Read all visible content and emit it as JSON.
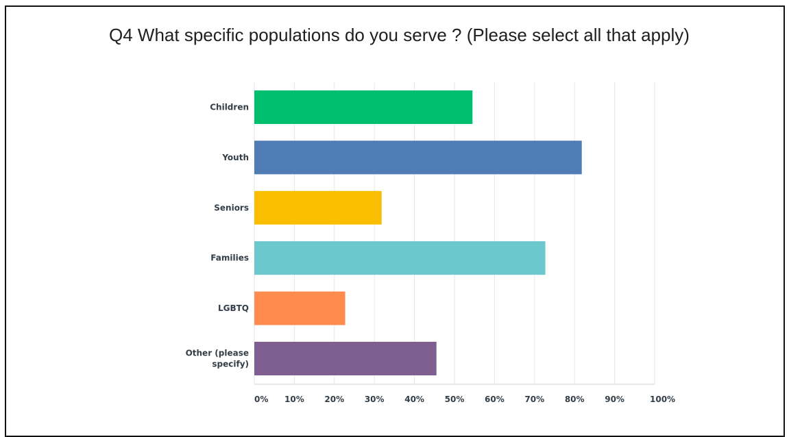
{
  "chart_data": {
    "type": "bar",
    "orientation": "horizontal",
    "title": "Q4 What specific populations do you serve ? (Please select all that apply)",
    "categories": [
      "Children",
      "Youth",
      "Seniors",
      "Families",
      "LGBTQ",
      "Other (please specify)"
    ],
    "category_lines": [
      [
        "Children"
      ],
      [
        "Youth"
      ],
      [
        "Seniors"
      ],
      [
        "Families"
      ],
      [
        "LGBTQ"
      ],
      [
        "Other (please",
        "specify)"
      ]
    ],
    "values": [
      54.5,
      81.8,
      31.8,
      72.7,
      22.7,
      45.5
    ],
    "value_unit": "%",
    "xlim": [
      0,
      100
    ],
    "x_ticks": [
      0,
      10,
      20,
      30,
      40,
      50,
      60,
      70,
      80,
      90,
      100
    ],
    "x_tick_labels": [
      "0%",
      "10%",
      "20%",
      "30%",
      "40%",
      "50%",
      "60%",
      "70%",
      "80%",
      "90%",
      "100%"
    ],
    "grid": true,
    "colors": [
      "#00bf6f",
      "#507cb6",
      "#f9be00",
      "#6bc8cd",
      "#ff8b4f",
      "#7f5f90"
    ]
  }
}
